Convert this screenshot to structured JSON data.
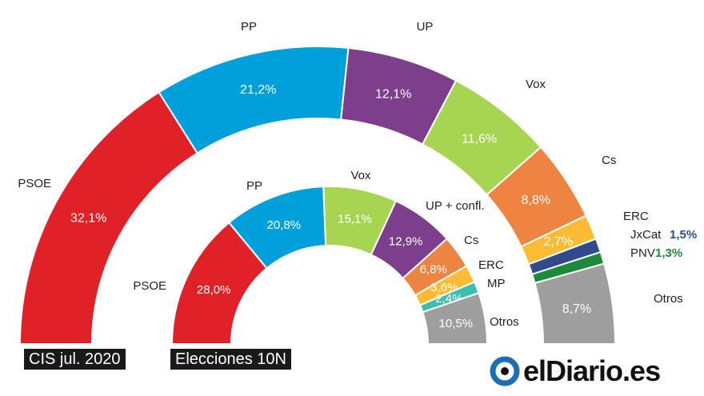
{
  "chart_data": [
    {
      "type": "parliament-arc",
      "caption": "CIS jul. 2020",
      "series": [
        {
          "party": "PSOE",
          "value": 32.1,
          "label": "32,1%",
          "color": "#e02127"
        },
        {
          "party": "PP",
          "value": 21.2,
          "label": "21,2%",
          "color": "#00a0dc"
        },
        {
          "party": "UP",
          "value": 12.1,
          "label": "12,1%",
          "color": "#7d3f8c"
        },
        {
          "party": "Vox",
          "value": 11.6,
          "label": "11,6%",
          "color": "#a8d551"
        },
        {
          "party": "Cs",
          "value": 8.8,
          "label": "8,8%",
          "color": "#ef8342"
        },
        {
          "party": "ERC",
          "value": 2.7,
          "label": "2,7%",
          "color": "#fbbc34"
        },
        {
          "party": "JxCat",
          "value": 1.5,
          "label": "1,5%",
          "color": "#304a8b"
        },
        {
          "party": "PNV",
          "value": 1.3,
          "label": "1,3%",
          "color": "#1e8a3b"
        },
        {
          "party": "Otros",
          "value": 8.7,
          "label": "8,7%",
          "color": "#9e9e9e"
        }
      ]
    },
    {
      "type": "parliament-arc",
      "caption": "Elecciones 10N",
      "series": [
        {
          "party": "PSOE",
          "value": 28.0,
          "label": "28,0%",
          "color": "#e02127"
        },
        {
          "party": "PP",
          "value": 20.8,
          "label": "20,8%",
          "color": "#00a0dc"
        },
        {
          "party": "Vox",
          "value": 15.1,
          "label": "15,1%",
          "color": "#a8d551"
        },
        {
          "party": "UP + confl.",
          "value": 12.9,
          "label": "12,9%",
          "color": "#7d3f8c"
        },
        {
          "party": "Cs",
          "value": 6.8,
          "label": "6,8%",
          "color": "#ef8342"
        },
        {
          "party": "ERC",
          "value": 3.6,
          "label": "3,6%",
          "color": "#fbbc34"
        },
        {
          "party": "MP",
          "value": 2.4,
          "label": "2,4%",
          "color": "#3dbfad"
        },
        {
          "party": "Otros",
          "value": 10.5,
          "label": "10,5%",
          "color": "#9e9e9e"
        }
      ]
    }
  ],
  "brand": {
    "name": "elDiario.es",
    "icon": "eldiario-logo-icon"
  }
}
